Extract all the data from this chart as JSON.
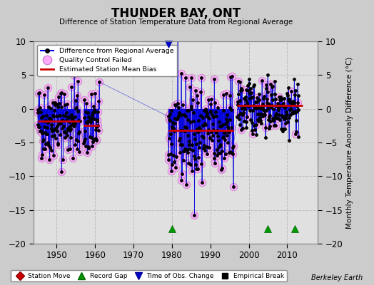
{
  "title": "THUNDER BAY, ONT",
  "subtitle": "Difference of Station Temperature Data from Regional Average",
  "ylabel": "Monthly Temperature Anomaly Difference (°C)",
  "xlabel_note": "Berkeley Earth",
  "xlim": [
    1944,
    2018
  ],
  "ylim": [
    -20,
    10
  ],
  "yticks": [
    -20,
    -15,
    -10,
    -5,
    0,
    5,
    10
  ],
  "xticks": [
    1950,
    1960,
    1970,
    1980,
    1990,
    2000,
    2010
  ],
  "background_color": "#cccccc",
  "plot_bg_color": "#e0e0e0",
  "grid_color": "#bbbbbb",
  "line_color": "#0000dd",
  "dot_color": "#000000",
  "qc_fail_color_face": "#ffaaff",
  "qc_fail_color_edge": "#cc88cc",
  "bias_color": "#cc0000",
  "seed": 42,
  "record_gaps": [
    1980.0,
    2005.0,
    2012.0
  ],
  "obs_changes": [
    1979.0
  ],
  "station_moves": [],
  "bias_segments": [
    {
      "x_start": 1945,
      "x_end": 1956,
      "bias": -1.8
    },
    {
      "x_start": 1957,
      "x_end": 1961,
      "bias": -2.5
    },
    {
      "x_start": 1979,
      "x_end": 1996,
      "bias": -3.2
    },
    {
      "x_start": 1997,
      "x_end": 2014,
      "bias": 0.5
    }
  ]
}
